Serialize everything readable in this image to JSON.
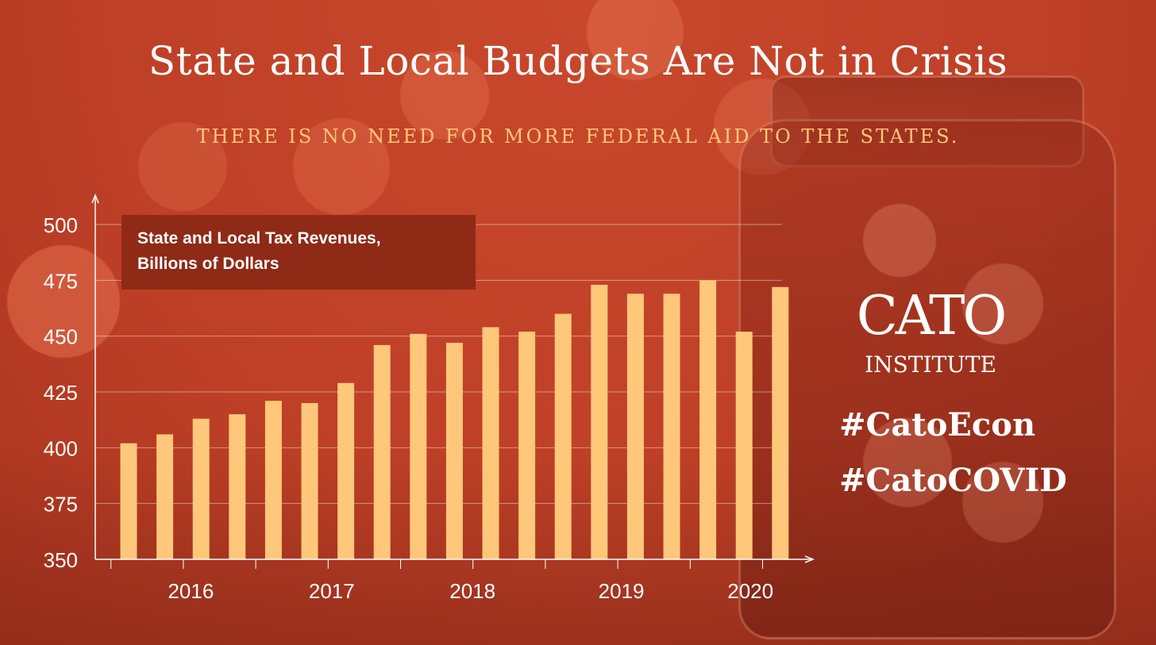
{
  "header": {
    "title": "State and Local Budgets Are Not in Crisis",
    "subtitle": "THERE IS NO NEED FOR MORE FEDERAL AID TO THE STATES."
  },
  "chart_label": {
    "line1": "State and Local Tax Revenues,",
    "line2": "Billions of Dollars"
  },
  "branding": {
    "logo_word": "CATO",
    "logo_sub": "INSTITUTE",
    "hashtags": [
      "#CatoEcon",
      "#CatoCOVID"
    ]
  },
  "colors": {
    "background": "#c4442a",
    "bar": "#ffc77a",
    "subtitle": "#ffc77a",
    "axis": "#ffffff"
  },
  "chart_data": {
    "type": "bar",
    "title": "State and Local Tax Revenues, Billions of Dollars",
    "xlabel": "",
    "ylabel": "",
    "ylim": [
      350,
      500
    ],
    "yticks": [
      350,
      375,
      400,
      425,
      450,
      475,
      500
    ],
    "grid": true,
    "x_tick_labels": [
      "2016",
      "2017",
      "2018",
      "2019",
      "2020"
    ],
    "values": [
      402,
      406,
      413,
      415,
      421,
      420,
      429,
      446,
      451,
      447,
      454,
      452,
      460,
      473,
      469,
      469,
      475,
      452,
      472
    ]
  }
}
